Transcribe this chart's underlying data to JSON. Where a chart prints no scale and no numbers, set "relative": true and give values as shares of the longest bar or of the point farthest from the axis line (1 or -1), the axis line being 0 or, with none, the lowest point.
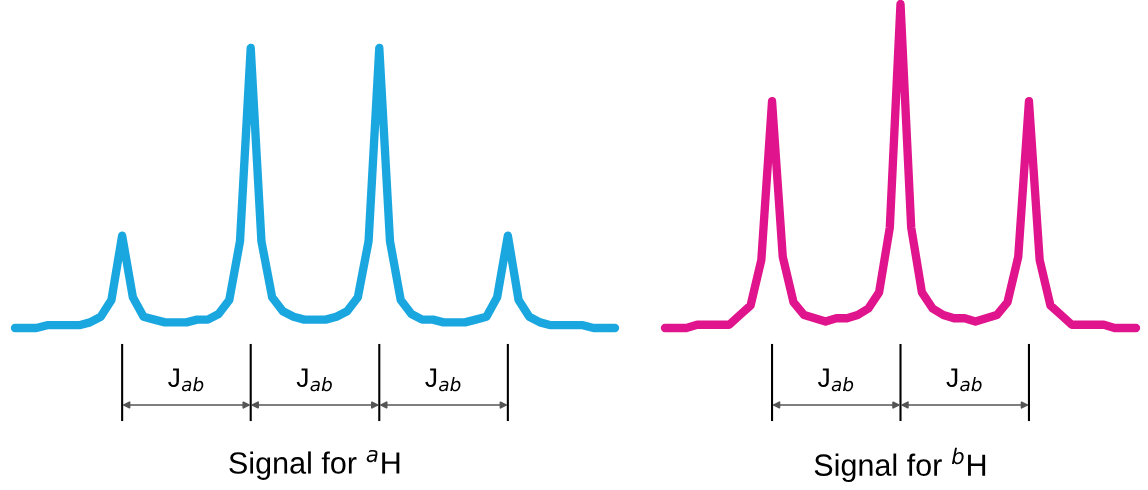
{
  "chart_data": [
    {
      "type": "line",
      "relative": true,
      "title": "Signal for $^{a}$H",
      "annotations": [
        "J$_{ab}$",
        "J$_{ab}$",
        "J$_{ab}$"
      ],
      "categories": [
        null,
        null,
        null,
        null,
        null,
        null,
        null,
        null,
        null,
        null,
        null,
        null,
        null,
        null,
        null,
        null,
        null,
        null,
        null,
        null,
        null,
        null,
        null,
        null,
        null,
        null,
        null,
        null,
        null,
        null,
        null,
        null,
        null,
        null,
        null,
        null,
        null,
        null,
        null,
        null,
        null,
        null,
        null,
        null,
        null,
        null,
        null,
        null,
        null,
        null,
        null,
        null,
        null,
        null,
        null,
        null,
        null
      ],
      "series": [
        {
          "color": "#1aa7e0",
          "values": [
            0,
            0,
            0,
            0.01,
            0.01,
            0.01,
            0.01,
            0.02,
            0.04,
            0.1,
            0.33,
            0.11,
            0.04,
            0.03,
            0.02,
            0.02,
            0.02,
            0.03,
            0.03,
            0.05,
            0.1,
            0.31,
            1,
            0.31,
            0.11,
            0.06,
            0.04,
            0.03,
            0.03,
            0.03,
            0.04,
            0.06,
            0.11,
            0.31,
            1,
            0.31,
            0.1,
            0.05,
            0.03,
            0.03,
            0.02,
            0.02,
            0.02,
            0.03,
            0.04,
            0.11,
            0.33,
            0.1,
            0.04,
            0.02,
            0.01,
            0.01,
            0.01,
            0.01,
            0,
            0,
            0
          ]
        }
      ]
    },
    {
      "type": "line",
      "relative": true,
      "title": "Signal for $^{b}$H",
      "annotations": [
        "J$_{ab}$",
        "J$_{ab}$"
      ],
      "categories": [
        null,
        null,
        null,
        null,
        null,
        null,
        null,
        null,
        null,
        null,
        null,
        null,
        null,
        null,
        null,
        null,
        null,
        null,
        null,
        null,
        null,
        null,
        null,
        null,
        null,
        null,
        null,
        null,
        null,
        null,
        null,
        null,
        null,
        null,
        null,
        null,
        null,
        null,
        null,
        null,
        null,
        null,
        null,
        null,
        null
      ],
      "series": [
        {
          "color": "#e0148c",
          "values": [
            0,
            0,
            0,
            0.01,
            0.01,
            0.01,
            0.01,
            0.04,
            0.07,
            0.21,
            0.7,
            0.22,
            0.08,
            0.04,
            0.03,
            0.02,
            0.03,
            0.03,
            0.04,
            0.06,
            0.11,
            0.31,
            1,
            0.31,
            0.11,
            0.06,
            0.04,
            0.03,
            0.03,
            0.02,
            0.03,
            0.04,
            0.08,
            0.22,
            0.7,
            0.21,
            0.07,
            0.04,
            0.01,
            0.01,
            0.01,
            0.01,
            0,
            0,
            0
          ]
        }
      ]
    }
  ]
}
